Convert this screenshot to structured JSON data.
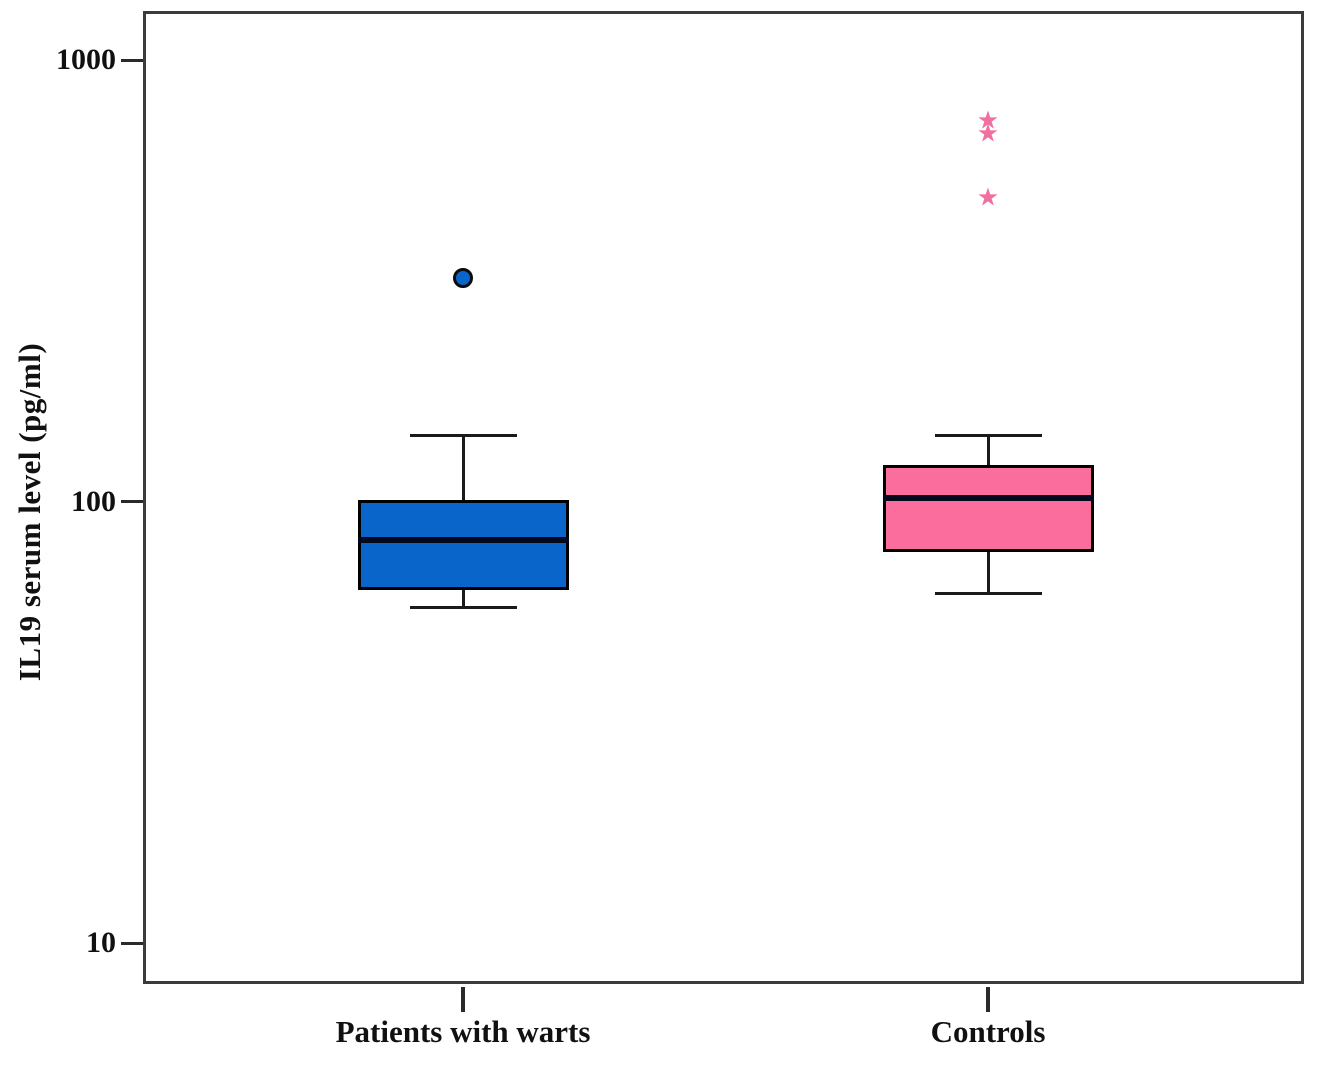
{
  "figure": {
    "background": "#ffffff",
    "frame_color": "#3b3b3b",
    "text_color": "#111111"
  },
  "chart_data": {
    "type": "boxplot",
    "title": "",
    "xlabel": "",
    "ylabel": "IL19 serum level (pg/ml)",
    "y_scale": "log",
    "y_ticks": [
      1000,
      100,
      10
    ],
    "y_tick_labels": [
      "1000",
      "100",
      "10"
    ],
    "ylim": [
      8,
      1285
    ],
    "grid": false,
    "legend": "none",
    "categories": [
      "Patients with warts",
      "Controls"
    ],
    "series": [
      {
        "name": "Patients with warts",
        "box_color": "#0a65ca",
        "median": 82,
        "q1": 63,
        "q3": 101,
        "whisker_low": 57.5,
        "whisker_high": 141,
        "outliers": [
          320
        ],
        "outlier_marker": "circle",
        "outlier_color": "#0a65ca"
      },
      {
        "name": "Controls",
        "box_color": "#fb6d9c",
        "median": 102,
        "q1": 77,
        "q3": 121,
        "whisker_low": 62,
        "whisker_high": 141,
        "outliers": [
          490,
          685,
          730
        ],
        "outlier_marker": "star",
        "outlier_color": "#f0709f"
      }
    ]
  }
}
